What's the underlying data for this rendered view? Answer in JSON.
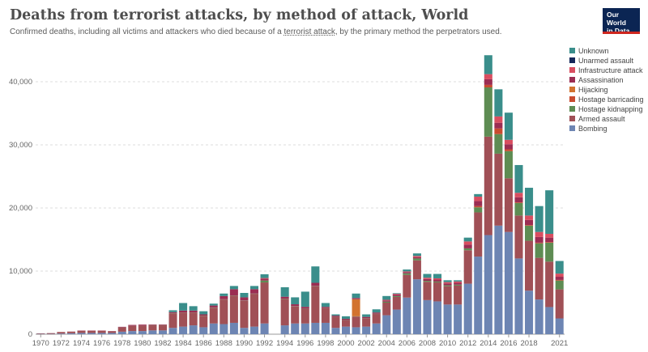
{
  "title": "Deaths from terrorist attacks, by method of attack, World",
  "subtitle_before": "Confirmed deaths, including all victims and attackers who died because of a ",
  "subtitle_link": "terrorist attack",
  "subtitle_after": ", by the primary method the perpetrators used.",
  "logo": {
    "line1": "Our World",
    "line2": "in Data"
  },
  "chart_data": {
    "type": "bar",
    "stacked": true,
    "ylim": [
      0,
      45000
    ],
    "y_ticks": [
      0,
      10000,
      20000,
      30000,
      40000
    ],
    "y_tick_labels": [
      "0",
      "10,000",
      "20,000",
      "30,000",
      "40,000"
    ],
    "x_tick_labels": [
      "1970",
      "1972",
      "1974",
      "1976",
      "1978",
      "1980",
      "1982",
      "1984",
      "1986",
      "1988",
      "1990",
      "1992",
      "1994",
      "1996",
      "1998",
      "2000",
      "2002",
      "2004",
      "2006",
      "2008",
      "2010",
      "2012",
      "2014",
      "2016",
      "2018",
      "2021"
    ],
    "grid": "horizontal",
    "legend_position": "right",
    "years": [
      1970,
      1971,
      1972,
      1973,
      1974,
      1975,
      1976,
      1977,
      1978,
      1979,
      1980,
      1981,
      1982,
      1983,
      1984,
      1985,
      1986,
      1987,
      1988,
      1989,
      1990,
      1991,
      1992,
      1993,
      1994,
      1995,
      1996,
      1997,
      1998,
      1999,
      2000,
      2001,
      2002,
      2003,
      2004,
      2005,
      2006,
      2007,
      2008,
      2009,
      2010,
      2011,
      2012,
      2013,
      2014,
      2015,
      2016,
      2017,
      2018,
      2019,
      2020,
      2021
    ],
    "series": [
      {
        "name": "Bombing",
        "color": "#6d85b3",
        "values": [
          50,
          50,
          100,
          150,
          200,
          200,
          200,
          200,
          400,
          500,
          500,
          600,
          600,
          1000,
          1200,
          1400,
          1100,
          1700,
          1600,
          1800,
          1000,
          1200,
          1700,
          0,
          1400,
          1700,
          1700,
          1800,
          1800,
          1000,
          1200,
          1100,
          1200,
          1700,
          3000,
          3900,
          5800,
          8700,
          5400,
          5200,
          4700,
          4700,
          8000,
          12300,
          15700,
          17200,
          16200,
          12000,
          6900,
          5500,
          4300,
          2500
        ]
      },
      {
        "name": "Armed assault",
        "color": "#a05056",
        "values": [
          80,
          120,
          250,
          250,
          350,
          350,
          350,
          250,
          650,
          800,
          850,
          800,
          800,
          2300,
          2200,
          2000,
          1800,
          2500,
          3900,
          4300,
          4300,
          5200,
          6500,
          0,
          4200,
          2700,
          2300,
          5800,
          2300,
          1700,
          1000,
          1700,
          1300,
          1500,
          2000,
          2000,
          3600,
          3000,
          2900,
          3000,
          2900,
          3000,
          5300,
          7000,
          15600,
          11400,
          8500,
          6800,
          7900,
          6600,
          7200,
          4600
        ]
      },
      {
        "name": "Hostage kidnapping",
        "color": "#5e8c53",
        "values": [
          0,
          0,
          0,
          0,
          0,
          0,
          0,
          0,
          20,
          20,
          20,
          40,
          40,
          40,
          40,
          40,
          40,
          40,
          40,
          40,
          40,
          40,
          300,
          0,
          40,
          40,
          40,
          40,
          40,
          40,
          40,
          40,
          40,
          40,
          150,
          150,
          250,
          300,
          150,
          150,
          150,
          150,
          300,
          800,
          7800,
          3100,
          4300,
          2000,
          2400,
          2300,
          3000,
          1400
        ]
      },
      {
        "name": "Hostage barricading",
        "color": "#c94b2f",
        "values": [
          0,
          0,
          0,
          0,
          0,
          0,
          0,
          0,
          0,
          0,
          0,
          0,
          0,
          0,
          0,
          0,
          0,
          0,
          0,
          0,
          0,
          0,
          0,
          0,
          0,
          0,
          0,
          0,
          0,
          0,
          0,
          0,
          0,
          0,
          0,
          0,
          0,
          0,
          0,
          0,
          0,
          0,
          0,
          200,
          400,
          900,
          300,
          100,
          100,
          100,
          100,
          100
        ]
      },
      {
        "name": "Hijacking",
        "color": "#d2732f",
        "values": [
          0,
          0,
          0,
          0,
          0,
          0,
          0,
          0,
          0,
          0,
          0,
          0,
          0,
          0,
          0,
          0,
          0,
          0,
          0,
          0,
          0,
          0,
          0,
          0,
          0,
          0,
          0,
          0,
          0,
          0,
          0,
          2700,
          0,
          0,
          0,
          0,
          0,
          0,
          0,
          0,
          0,
          0,
          0,
          0,
          0,
          0,
          0,
          0,
          0,
          0,
          0,
          0
        ]
      },
      {
        "name": "Assassination",
        "color": "#9b2d52",
        "values": [
          0,
          0,
          0,
          20,
          40,
          40,
          40,
          40,
          100,
          150,
          150,
          100,
          100,
          150,
          300,
          300,
          200,
          300,
          500,
          1000,
          500,
          700,
          300,
          0,
          300,
          300,
          300,
          500,
          200,
          200,
          200,
          200,
          200,
          200,
          200,
          250,
          200,
          200,
          300,
          300,
          300,
          300,
          600,
          800,
          900,
          900,
          800,
          800,
          800,
          900,
          700,
          500
        ]
      },
      {
        "name": "Infrastructure attack",
        "color": "#d94e60",
        "values": [
          0,
          0,
          0,
          0,
          0,
          0,
          0,
          0,
          0,
          0,
          0,
          0,
          0,
          0,
          0,
          0,
          0,
          0,
          0,
          0,
          0,
          0,
          100,
          0,
          0,
          0,
          0,
          0,
          0,
          0,
          0,
          0,
          0,
          0,
          100,
          100,
          100,
          200,
          200,
          200,
          200,
          200,
          500,
          700,
          800,
          1000,
          700,
          700,
          700,
          800,
          600,
          500
        ]
      },
      {
        "name": "Unarmed assault",
        "color": "#15285a",
        "values": [
          0,
          0,
          0,
          0,
          0,
          0,
          0,
          0,
          0,
          0,
          0,
          0,
          0,
          0,
          0,
          0,
          0,
          0,
          0,
          0,
          0,
          0,
          0,
          0,
          0,
          0,
          0,
          0,
          0,
          0,
          0,
          0,
          0,
          0,
          0,
          0,
          0,
          0,
          0,
          0,
          0,
          0,
          0,
          0,
          0,
          0,
          0,
          0,
          0,
          0,
          0,
          0
        ]
      },
      {
        "name": "Unknown",
        "color": "#3a8e8b",
        "values": [
          0,
          0,
          0,
          0,
          0,
          0,
          0,
          0,
          0,
          0,
          0,
          0,
          0,
          300,
          1200,
          700,
          500,
          300,
          400,
          500,
          700,
          500,
          600,
          0,
          1500,
          1100,
          2400,
          2600,
          600,
          200,
          400,
          700,
          400,
          500,
          600,
          100,
          300,
          400,
          600,
          700,
          300,
          200,
          600,
          400,
          3000,
          4300,
          4300,
          4400,
          4400,
          4100,
          6900,
          2000
        ]
      }
    ]
  }
}
